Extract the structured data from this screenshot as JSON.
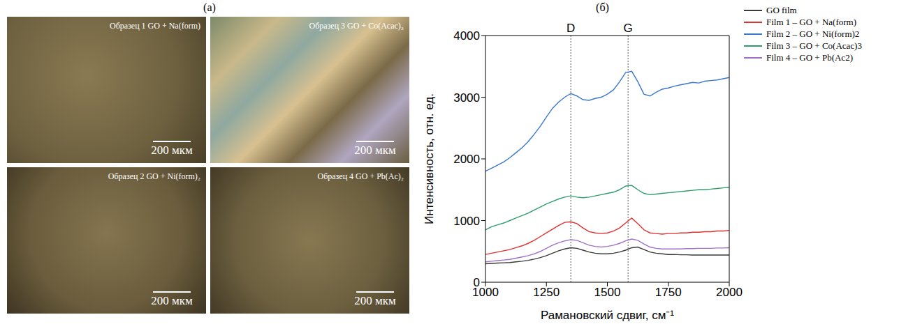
{
  "panel_a": {
    "label": "(a)",
    "images": [
      {
        "title": "Образец 1 GO + Na(form)",
        "scale_bar": "200 мкм"
      },
      {
        "title": "Образец 3 GO + Co(Acac)₃",
        "scale_bar": "200 мкм"
      },
      {
        "title": "Образец 2 GO + Ni(form)₂",
        "scale_bar": "200 мкм"
      },
      {
        "title": "Образец 4 GO + Pb(Ac)₂",
        "scale_bar": "200 мкм"
      }
    ]
  },
  "chart_data": {
    "type": "line",
    "panel_label": "(б)",
    "x_label": "Рамановский сдвиг, см⁻¹",
    "y_label": "Интенсивность, отн. ед.",
    "x": [
      1000,
      1025,
      1050,
      1075,
      1100,
      1125,
      1150,
      1175,
      1200,
      1225,
      1250,
      1275,
      1300,
      1325,
      1350,
      1375,
      1400,
      1425,
      1450,
      1475,
      1500,
      1525,
      1550,
      1575,
      1600,
      1625,
      1650,
      1675,
      1700,
      1725,
      1750,
      1775,
      1800,
      1825,
      1850,
      1875,
      1900,
      1925,
      1950,
      1975,
      2000
    ],
    "series": [
      {
        "name": "GO film",
        "color": "#3a3a3a",
        "values": [
          300,
          305,
          310,
          315,
          320,
          330,
          340,
          355,
          375,
          400,
          430,
          470,
          510,
          540,
          560,
          550,
          520,
          490,
          470,
          460,
          460,
          470,
          490,
          520,
          560,
          570,
          530,
          490,
          470,
          460,
          450,
          450,
          445,
          445,
          440,
          440,
          440,
          440,
          440,
          440,
          440
        ]
      },
      {
        "name": "Film 1 – GO + Na(form)",
        "color": "#e03030",
        "values": [
          450,
          470,
          490,
          510,
          530,
          560,
          590,
          630,
          680,
          740,
          800,
          860,
          920,
          970,
          980,
          950,
          880,
          820,
          800,
          790,
          800,
          830,
          880,
          960,
          1040,
          950,
          850,
          800,
          790,
          780,
          790,
          790,
          800,
          800,
          810,
          810,
          820,
          820,
          830,
          830,
          840
        ]
      },
      {
        "name": "Film 2 – GO + Ni(form)2",
        "color": "#3a78cc",
        "values": [
          1800,
          1850,
          1900,
          1950,
          2020,
          2100,
          2180,
          2280,
          2400,
          2530,
          2680,
          2820,
          2920,
          3000,
          3060,
          3020,
          2960,
          2950,
          2980,
          3000,
          3050,
          3120,
          3250,
          3400,
          3420,
          3250,
          3050,
          3020,
          3080,
          3130,
          3150,
          3180,
          3200,
          3220,
          3240,
          3230,
          3260,
          3270,
          3280,
          3300,
          3320
        ]
      },
      {
        "name": "Film 3 – GO + Co(Acac)3",
        "color": "#2e9e6e",
        "values": [
          850,
          900,
          930,
          960,
          1000,
          1040,
          1080,
          1120,
          1170,
          1220,
          1270,
          1310,
          1350,
          1380,
          1400,
          1380,
          1370,
          1380,
          1400,
          1420,
          1440,
          1460,
          1500,
          1560,
          1570,
          1500,
          1440,
          1420,
          1430,
          1440,
          1450,
          1460,
          1470,
          1480,
          1490,
          1500,
          1500,
          1510,
          1520,
          1530,
          1540
        ]
      },
      {
        "name": "Film 4 – GO + Pb(Ac2)",
        "color": "#a070c8",
        "values": [
          330,
          340,
          350,
          360,
          370,
          390,
          410,
          430,
          460,
          500,
          550,
          600,
          640,
          670,
          690,
          680,
          640,
          600,
          580,
          570,
          580,
          600,
          630,
          670,
          700,
          680,
          620,
          570,
          550,
          540,
          540,
          540,
          540,
          545,
          545,
          550,
          550,
          550,
          555,
          555,
          560
        ]
      }
    ],
    "annotations": [
      {
        "text": "D",
        "x": 1350
      },
      {
        "text": "G",
        "x": 1585
      }
    ],
    "xlim": [
      1000,
      2000
    ],
    "xticks": [
      1000,
      1250,
      1500,
      1750,
      2000
    ],
    "ylim": [
      0,
      4000
    ],
    "yticks": [
      0,
      1000,
      2000,
      3000,
      4000
    ],
    "grid": false,
    "legend": "upper right"
  }
}
